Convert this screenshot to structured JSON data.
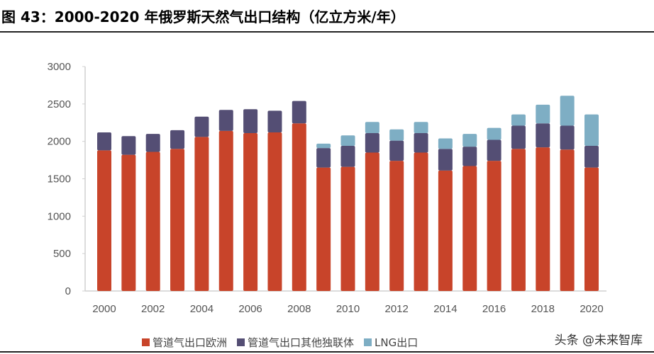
{
  "title": "图 43：2000-2020 年俄罗斯天然气出口结构（亿立方米/年）",
  "watermark": "头条 @未来智库",
  "chart_data": {
    "type": "bar",
    "stacked": true,
    "title": "",
    "xlabel": "",
    "ylabel": "",
    "ylim": [
      0,
      3000
    ],
    "yticks": [
      0,
      500,
      1000,
      1500,
      2000,
      2500,
      3000
    ],
    "grid": false,
    "legend_position": "bottom",
    "categories": [
      "2000",
      "2001",
      "2002",
      "2003",
      "2004",
      "2005",
      "2006",
      "2007",
      "2008",
      "2009",
      "2010",
      "2011",
      "2012",
      "2013",
      "2014",
      "2015",
      "2016",
      "2017",
      "2018",
      "2019",
      "2020"
    ],
    "xtick_labels": [
      "2000",
      "2002",
      "2004",
      "2006",
      "2008",
      "2010",
      "2012",
      "2014",
      "2016",
      "2018",
      "2020"
    ],
    "series": [
      {
        "name": "管道气出口欧洲",
        "color": "#c8442a",
        "values": [
          1880,
          1820,
          1860,
          1900,
          2060,
          2140,
          2110,
          2120,
          2240,
          1650,
          1660,
          1850,
          1740,
          1850,
          1610,
          1670,
          1740,
          1900,
          1920,
          1890,
          1650
        ]
      },
      {
        "name": "管道气出口其他独联体",
        "color": "#544e74",
        "values": [
          240,
          250,
          240,
          250,
          270,
          280,
          320,
          290,
          300,
          260,
          280,
          260,
          270,
          260,
          290,
          260,
          280,
          310,
          320,
          320,
          290
        ]
      },
      {
        "name": "LNG出口",
        "color": "#7eaec4",
        "values": [
          0,
          0,
          0,
          0,
          0,
          0,
          0,
          0,
          0,
          60,
          140,
          150,
          150,
          150,
          140,
          170,
          160,
          150,
          250,
          400,
          420
        ]
      }
    ]
  }
}
